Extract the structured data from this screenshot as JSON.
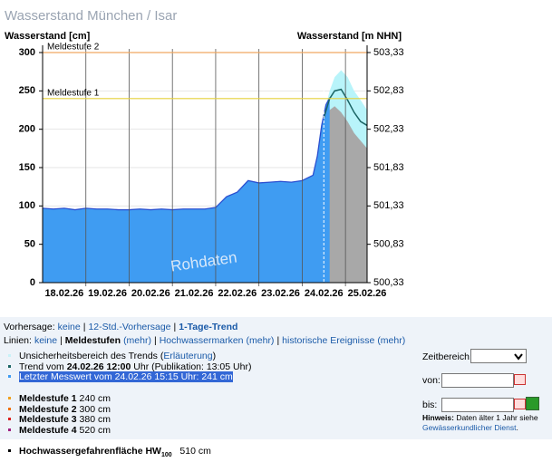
{
  "chart_data": {
    "type": "area",
    "title": "Wasserstand München / Isar",
    "ylabel": "Wasserstand [cm]",
    "y2label": "Wasserstand [m NHN]",
    "xlim": [
      0,
      7.5
    ],
    "xticks": [
      {
        "value": 0.5,
        "label": "18.02.26"
      },
      {
        "value": 1.5,
        "label": "19.02.26"
      },
      {
        "value": 2.5,
        "label": "20.02.26"
      },
      {
        "value": 3.5,
        "label": "21.02.26"
      },
      {
        "value": 4.5,
        "label": "22.02.26"
      },
      {
        "value": 5.5,
        "label": "23.02.26"
      },
      {
        "value": 6.5,
        "label": "24.02.26"
      },
      {
        "value": 7.5,
        "label": "25.02.26"
      }
    ],
    "ylim": [
      0,
      300
    ],
    "yticks": [
      0,
      50,
      100,
      150,
      200,
      250,
      300
    ],
    "y2lim": [
      500.33,
      503.33
    ],
    "y2ticks": [
      {
        "value": 500.33,
        "label": "500,33"
      },
      {
        "value": 500.83,
        "label": "500,83"
      },
      {
        "value": 501.33,
        "label": "501,33"
      },
      {
        "value": 501.83,
        "label": "501,83"
      },
      {
        "value": 502.33,
        "label": "502,33"
      },
      {
        "value": 502.83,
        "label": "502,83"
      },
      {
        "value": 503.33,
        "label": "503,33"
      }
    ],
    "grid": true,
    "thresholds": [
      {
        "label": "Meldestufe 1",
        "value": 240,
        "color": "#e6d23c"
      },
      {
        "label": "Meldestufe 2",
        "value": 300,
        "color": "#f0a860"
      }
    ],
    "trend_time": 6.5,
    "watermark": "Rohdaten",
    "trend_upper": {
      "color": "#b8f4fa",
      "x": [
        6.5,
        6.635,
        6.75,
        6.9,
        7.05,
        7.2,
        7.35,
        7.5
      ],
      "values": [
        220,
        250,
        268,
        277,
        268,
        250,
        238,
        225
      ]
    },
    "trend_lower": {
      "color": "#a8a8a8",
      "x": [
        6.55,
        6.635,
        6.75,
        6.9,
        7.05,
        7.2,
        7.35,
        7.5
      ],
      "values": [
        215,
        225,
        230,
        222,
        210,
        195,
        185,
        175
      ]
    },
    "measured": {
      "color": "#3f9cf2",
      "line_color": "#2a4fd0",
      "x": [
        0,
        0.25,
        0.5,
        0.75,
        1,
        1.25,
        1.5,
        1.75,
        2,
        2.25,
        2.5,
        2.75,
        3,
        3.25,
        3.5,
        3.75,
        4,
        4.25,
        4.5,
        4.75,
        5,
        5.25,
        5.5,
        5.75,
        6,
        6.25,
        6.35,
        6.45,
        6.55,
        6.635
      ],
      "values": [
        97,
        96,
        97,
        95,
        97,
        96,
        96,
        95,
        95,
        96,
        95,
        96,
        95,
        96,
        96,
        96,
        98,
        112,
        118,
        133,
        130,
        131,
        132,
        131,
        133,
        140,
        165,
        205,
        232,
        241
      ]
    },
    "trend": {
      "color": "#1a6464",
      "x": [
        6.5,
        6.635,
        6.75,
        6.9,
        7.05,
        7.2,
        7.35,
        7.5
      ],
      "values": [
        215,
        240,
        250,
        252,
        238,
        222,
        210,
        205
      ]
    }
  },
  "ui": {
    "forecast_row": [
      {
        "text": "Vorhersage:"
      },
      {
        "text": "keine",
        "style": "link"
      },
      {
        "text": "|"
      },
      {
        "text": "12-Std.-Vorhersage",
        "style": "link"
      },
      {
        "text": "|"
      },
      {
        "text": "1-Tage-Trend",
        "style": "bold-link"
      }
    ],
    "lines_row": [
      {
        "text": "Linien:"
      },
      {
        "text": "keine",
        "style": "link"
      },
      {
        "text": "|"
      },
      {
        "text": "Meldestufen",
        "style": "bold"
      },
      {
        "text": "(mehr)",
        "style": "link"
      },
      {
        "text": "|"
      },
      {
        "text": "Hochwassermarken",
        "style": "link"
      },
      {
        "text": "(mehr)",
        "style": "link"
      },
      {
        "text": "|"
      },
      {
        "text": "historische Ereignisse",
        "style": "link"
      },
      {
        "text": "(mehr)",
        "style": "link"
      }
    ],
    "legend_groups": [
      [
        {
          "bullet": "#c8f2f8",
          "parts": [
            {
              "text": "Unsicherheitsbereich des Trends ("
            },
            {
              "text": "Erläuterung",
              "style": "link"
            },
            {
              "text": ")"
            }
          ]
        },
        {
          "bullet": "#1a6464",
          "parts": [
            {
              "text": "Trend vom "
            },
            {
              "text": "24.02.26 12:00",
              "style": "bold"
            },
            {
              "text": " Uhr (Publikation: 13:05 Uhr)"
            }
          ]
        },
        {
          "bullet": "#3f9cf2",
          "parts": [
            {
              "text": "Letzter Messwert vom 24.02.26 15:15 Uhr: 241 cm",
              "style": "selected"
            }
          ]
        }
      ],
      [
        {
          "bullet": "#f0a020",
          "parts": [
            {
              "text": "Meldestufe 1",
              "style": "bold"
            },
            {
              "text": " 240 cm"
            }
          ]
        },
        {
          "bullet": "#f07010",
          "parts": [
            {
              "text": "Meldestufe 2",
              "style": "bold"
            },
            {
              "text": " 300 cm"
            }
          ]
        },
        {
          "bullet": "#dd2020",
          "parts": [
            {
              "text": "Meldestufe 3",
              "style": "bold"
            },
            {
              "text": " 380 cm"
            }
          ]
        },
        {
          "bullet": "#a02080",
          "parts": [
            {
              "text": "Meldestufe 4",
              "style": "bold"
            },
            {
              "text": " 520 cm"
            }
          ]
        }
      ],
      [
        {
          "bullet": "#000000",
          "parts": [
            {
              "text": "Hochwassergefahrenfläche HW",
              "style": "bold"
            },
            {
              "text": "100",
              "style": "bold-sub"
            },
            {
              "text": "   510 cm"
            }
          ]
        }
      ]
    ],
    "form": {
      "range_label": "Zeitbereich:",
      "from_label": "von:",
      "to_label": "bis:",
      "hint": [
        {
          "text": "Hinweis:",
          "style": "bold"
        },
        {
          "text": " Daten älter 1 Jahr siehe "
        },
        {
          "text": "Gewässerkundlicher Dienst",
          "style": "link"
        },
        {
          "text": "."
        }
      ]
    }
  }
}
